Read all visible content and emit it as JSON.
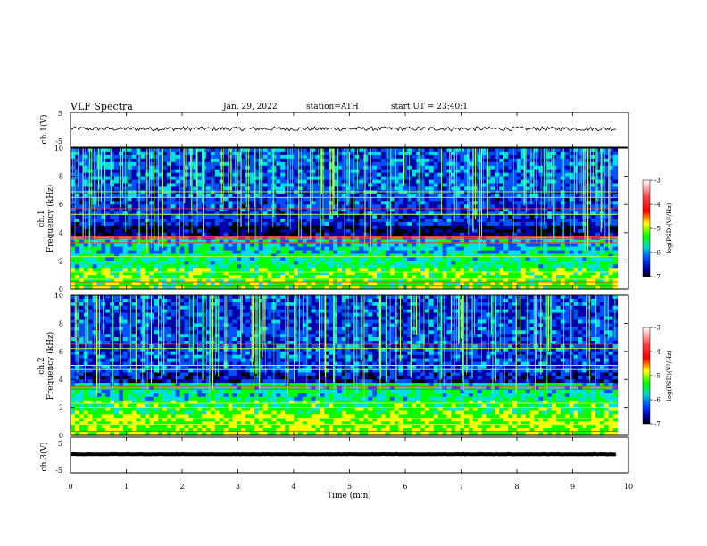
{
  "header": {
    "title": "VLF Spectra",
    "date": "Jan. 29, 2022",
    "station": "station=ATH",
    "start": "start  UT  =   23:40:1"
  },
  "colorbar": {
    "label": "log(PSD)(V²/Hz)",
    "ticks": [
      "-3",
      "-4",
      "-5",
      "-6",
      "-7"
    ],
    "colors": [
      "#ffffff",
      "#ff0000",
      "#ffff00",
      "#00ff00",
      "#00e0e0",
      "#0050ff",
      "#0000aa",
      "#000000"
    ]
  },
  "chart_data": [
    {
      "type": "line",
      "title": "",
      "ylabel": "ch.1(V)",
      "xlim": [
        0,
        10
      ],
      "ylim": [
        -5,
        5
      ],
      "yticks": [
        "5",
        "-5"
      ],
      "description_values": {
        "baseline_V": 0.3,
        "noise_amplitude_V": 0.6
      }
    },
    {
      "type": "heatmap",
      "ylabel": "ch.1\nFrequency (kHz)",
      "ylabel_lines": [
        "ch.1",
        "Frequency (kHz)"
      ],
      "xlim": [
        0,
        10
      ],
      "ylim": [
        0,
        10
      ],
      "yticks": [
        "0",
        "2",
        "4",
        "6",
        "8",
        "10"
      ],
      "data_end_min": 9.8,
      "bands": [
        {
          "from_khz": 0.0,
          "to_khz": 1.5,
          "log_psd": -4.8
        },
        {
          "from_khz": 1.5,
          "to_khz": 2.5,
          "log_psd": -5.2
        },
        {
          "from_khz": 2.5,
          "to_khz": 3.8,
          "log_psd": -5.5
        },
        {
          "from_khz": 3.8,
          "to_khz": 4.6,
          "log_psd": -6.7
        },
        {
          "from_khz": 4.6,
          "to_khz": 6.5,
          "log_psd": -6.2
        },
        {
          "from_khz": 6.5,
          "to_khz": 10.0,
          "log_psd": -6.0
        }
      ],
      "lines_khz": [
        0.2,
        0.5,
        0.7,
        1.2,
        2.0,
        2.3,
        3.3,
        3.6,
        3.7,
        5.3,
        5.7,
        6.5,
        6.9
      ]
    },
    {
      "type": "heatmap",
      "ylabel": "ch.2\nFrequency (kHz)",
      "ylabel_lines": [
        "ch.2",
        "Frequency (kHz)"
      ],
      "xlim": [
        0,
        10
      ],
      "ylim": [
        0,
        10
      ],
      "yticks": [
        "0",
        "2",
        "4",
        "6",
        "8",
        "10"
      ],
      "data_end_min": 9.8,
      "bands": [
        {
          "from_khz": 0.0,
          "to_khz": 1.5,
          "log_psd": -4.6
        },
        {
          "from_khz": 1.5,
          "to_khz": 2.6,
          "log_psd": -4.9
        },
        {
          "from_khz": 2.6,
          "to_khz": 3.8,
          "log_psd": -5.3
        },
        {
          "from_khz": 3.8,
          "to_khz": 4.6,
          "log_psd": -6.4
        },
        {
          "from_khz": 4.6,
          "to_khz": 6.5,
          "log_psd": -6.1
        },
        {
          "from_khz": 6.5,
          "to_khz": 10.0,
          "log_psd": -6.1
        }
      ],
      "lines_khz": [
        0.3,
        0.8,
        1.2,
        2.0,
        2.3,
        3.3,
        3.5,
        4.7,
        5.0,
        6.2,
        6.5
      ]
    },
    {
      "type": "line",
      "ylabel": "ch.3(V)",
      "xlabel": "Time (min)",
      "xlim": [
        0,
        10
      ],
      "ylim": [
        -5,
        5
      ],
      "yticks": [
        "5",
        "-5"
      ],
      "xticks": [
        "0",
        "1",
        "2",
        "3",
        "4",
        "5",
        "6",
        "7",
        "8",
        "9",
        "10"
      ],
      "description_values": {
        "baseline_V": 0.2,
        "noise_amplitude_V": 0.05
      }
    }
  ]
}
